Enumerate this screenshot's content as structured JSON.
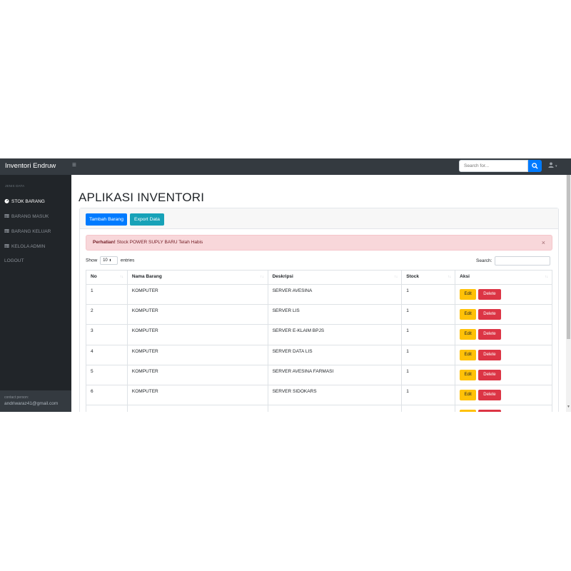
{
  "navbar": {
    "brand": "Inventori Endruw",
    "search_placeholder": "Search for...",
    "user_caret": "▾"
  },
  "sidebar": {
    "heading": "JENIS DATA",
    "items": [
      {
        "label": "STOK BARANG",
        "icon": "dashboard-icon",
        "active": true
      },
      {
        "label": "BARANG MASUK",
        "icon": "table-icon",
        "active": false
      },
      {
        "label": "BARANG KELUAR",
        "icon": "table-icon",
        "active": false
      },
      {
        "label": "KELOLA ADMIN",
        "icon": "table-icon",
        "active": false
      },
      {
        "label": "LOGOUT",
        "icon": "",
        "active": false
      }
    ],
    "footer_label": "contact person:",
    "footer_email": "andriwaraz41@gmail.com"
  },
  "main": {
    "title": "APLIKASI INVENTORI",
    "add_button": "Tambah Barang",
    "export_button": "Export Data",
    "alert_strong": "Perhatian!",
    "alert_text": " Stock POWER SUPLY BARU Telah Habis",
    "alert_close": "×",
    "show_label": "Show",
    "entries_value": "10",
    "entries_label": "entries",
    "search_label": "Search:"
  },
  "table": {
    "headers": [
      "No",
      "Nama Barang",
      "Deskripsi",
      "Stock",
      "Aksi"
    ],
    "edit_label": "Edit",
    "delete_label": "Delete",
    "rows": [
      {
        "no": "1",
        "nama": "KOMPUTER",
        "deskripsi": "SERVER AVESINA",
        "stock": "1"
      },
      {
        "no": "2",
        "nama": "KOMPUTER",
        "deskripsi": "SERVER LIS",
        "stock": "1"
      },
      {
        "no": "3",
        "nama": "KOMPUTER",
        "deskripsi": "SERVER E-KLAIM BPJS",
        "stock": "1"
      },
      {
        "no": "4",
        "nama": "KOMPUTER",
        "deskripsi": "SERVER DATA LIS",
        "stock": "1"
      },
      {
        "no": "5",
        "nama": "KOMPUTER",
        "deskripsi": "SERVER AVESINA FARMASI",
        "stock": "1"
      },
      {
        "no": "6",
        "nama": "KOMPUTER",
        "deskripsi": "SERVER SIDOKARS",
        "stock": "1"
      },
      {
        "no": "",
        "nama": "",
        "deskripsi": "",
        "stock": ""
      }
    ]
  },
  "colors": {
    "navbar_bg": "#343a40",
    "sidebar_bg": "#212529",
    "primary": "#007bff",
    "info": "#17a2b8",
    "warning": "#ffc107",
    "danger": "#dc3545",
    "alert_bg": "#f8d7da"
  }
}
